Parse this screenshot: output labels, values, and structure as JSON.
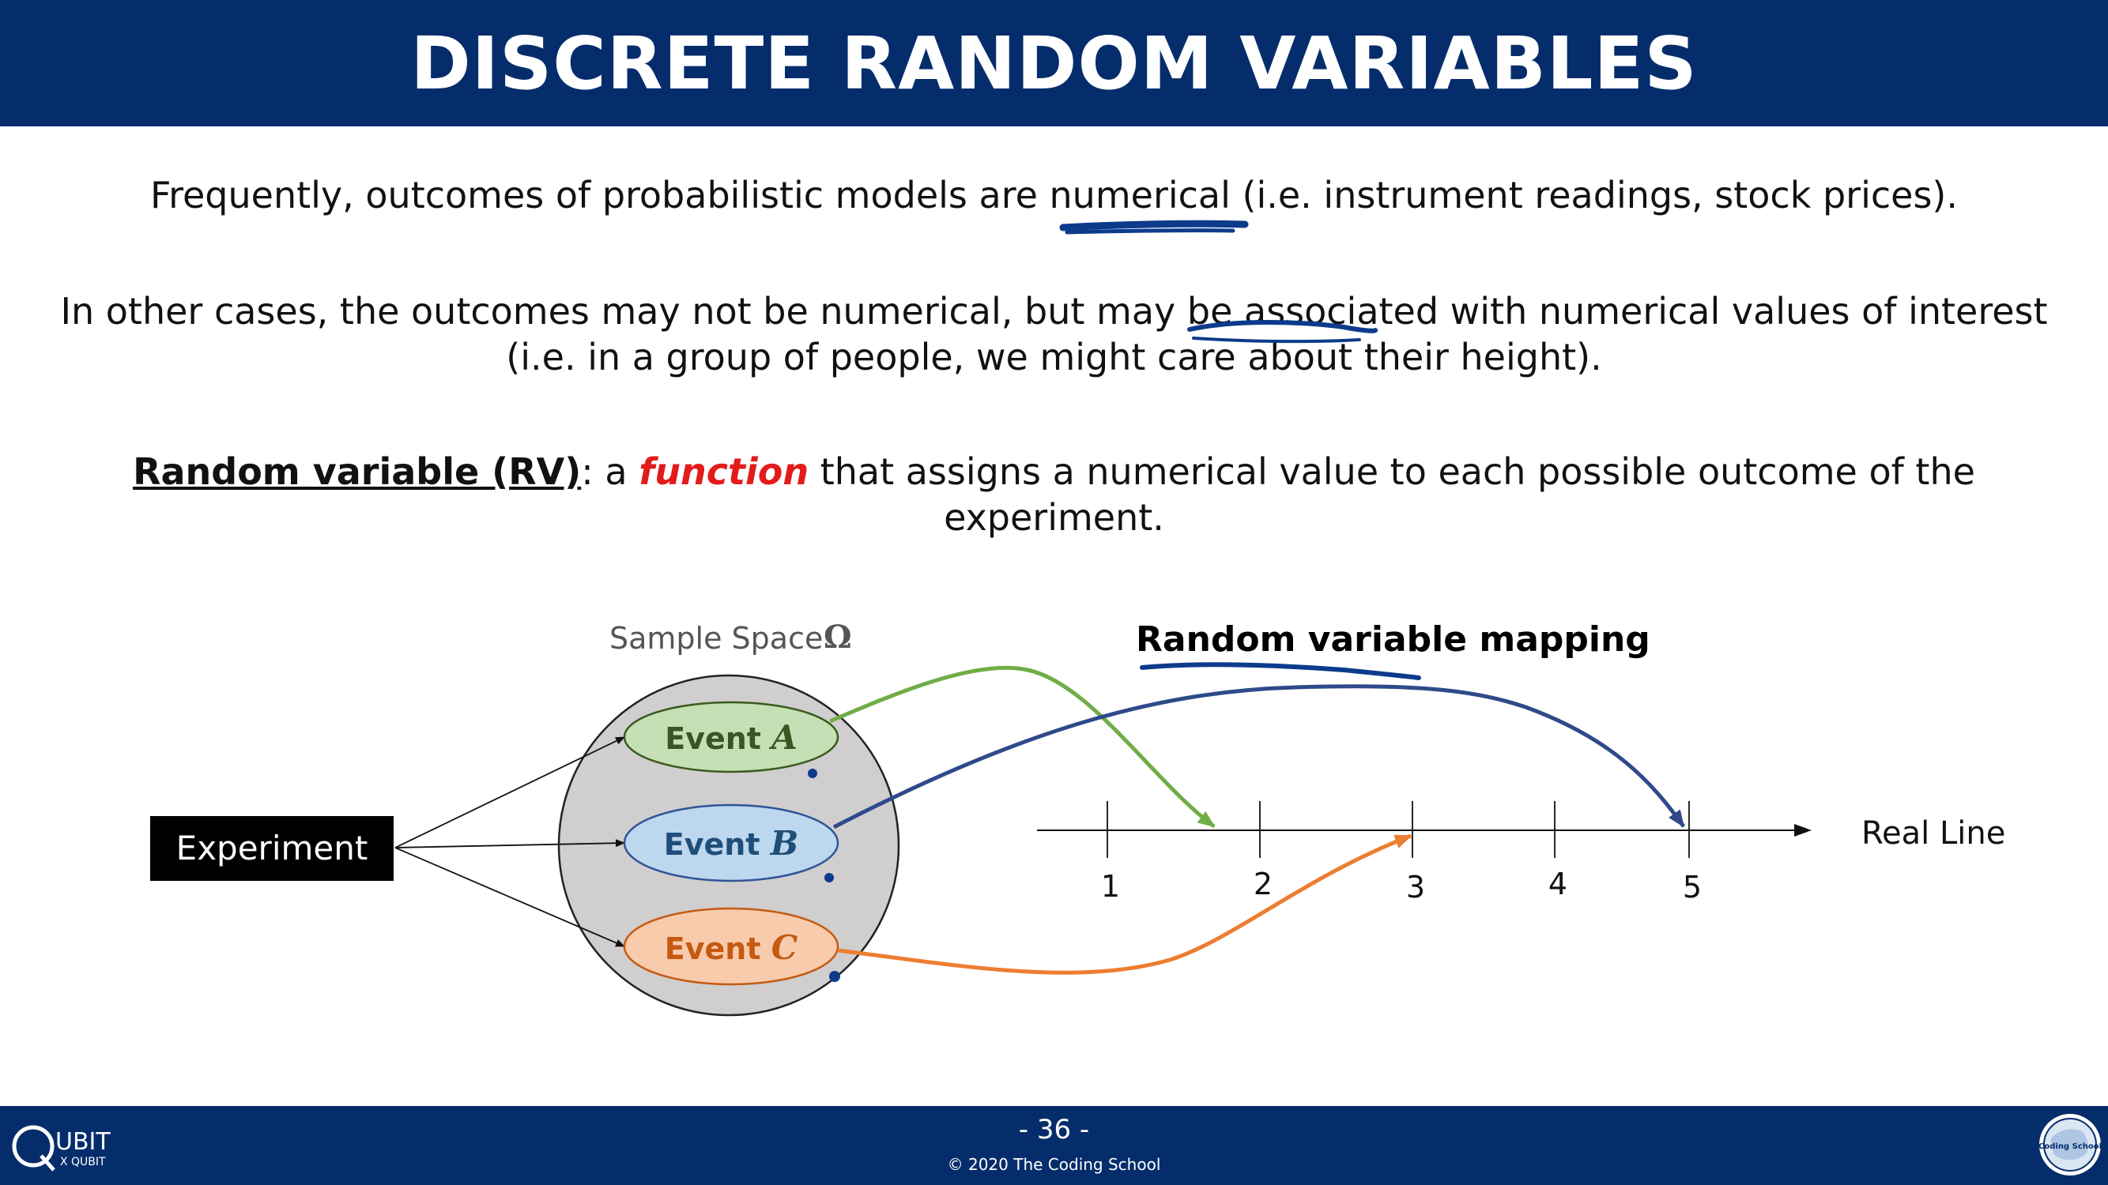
{
  "title": "DISCRETE RANDOM VARIABLES",
  "paragraphs": {
    "p1_before": "Frequently, outcomes of probabilistic models are ",
    "p1_highlight": "numerical",
    "p1_after": " (i.e. instrument readings, stock prices).",
    "p2_before": "In other cases, the outcomes may not be numerical, but may be ",
    "p2_highlight": "associated",
    "p2_after": " with numerical values of interest (i.e. in a group of people, we might care about their height).",
    "rv_term": "Random variable (RV)",
    "rv_colon": ": a ",
    "rv_function": "function",
    "rv_rest": " that assigns a numerical value to each possible outcome of the experiment."
  },
  "diagram": {
    "experiment_label": "Experiment",
    "sample_space_label": "Sample Space",
    "omega_symbol": "Ω",
    "events": [
      {
        "word": "Event",
        "letter": "A",
        "fill": "#c5e0b4",
        "stroke": "#3a5a1e",
        "text_color": "#385723"
      },
      {
        "word": "Event",
        "letter": "B",
        "fill": "#bdd7ee",
        "stroke": "#2f5597",
        "text_color": "#1f4e79"
      },
      {
        "word": "Event",
        "letter": "C",
        "fill": "#f8cbad",
        "stroke": "#c55a11",
        "text_color": "#c55a11"
      }
    ],
    "mapping_title": "Random variable mapping",
    "real_line_label": "Real Line",
    "ticks": [
      "1",
      "2",
      "3",
      "4",
      "5"
    ],
    "arrow_colors": {
      "A": "#70ad47",
      "B": "#2f4a8a",
      "C": "#ed7d31"
    },
    "circle_fill": "#d0cece",
    "annotation_color": "#0d3b8c"
  },
  "footer": {
    "page_number": "- 36 -",
    "copyright": "© 2020 The Coding School",
    "left_logo_text": "UBIT",
    "left_logo_sub": "X QUBIT",
    "right_logo_text": "<Coding School>"
  },
  "colors": {
    "header_bg": "#062d6b",
    "function_red": "#e31b1b"
  }
}
